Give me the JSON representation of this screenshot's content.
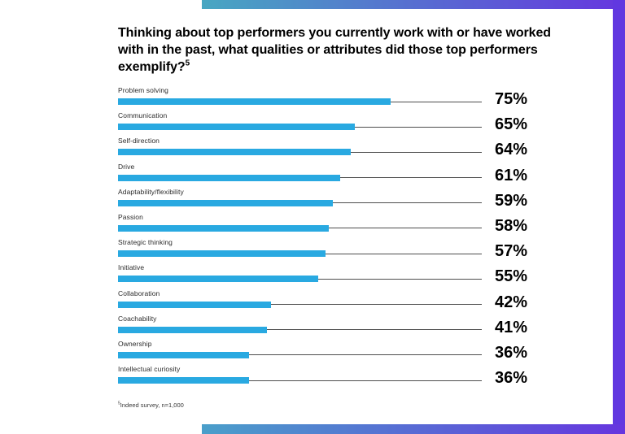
{
  "chart": {
    "title": "Thinking about top performers you currently work with or have worked with in the past, what qualities or attributes did those top performers exemplify?",
    "title_superscript": "5"
  },
  "footnote": {
    "superscript": "5",
    "text": "Indeed survey, n=1,000"
  },
  "colors": {
    "bar_color": "#29a9e1",
    "leader_line_color": "#4d4d4d",
    "gradient_teal": "#48a7c2",
    "gradient_blue": "#4a9fca",
    "gradient_purple": "#6636df",
    "right_column": "#6138e0"
  },
  "chart_data": {
    "type": "bar",
    "orientation": "horizontal",
    "title": "Thinking about top performers you currently work with or have worked with in the past, what qualities or attributes did those top performers exemplify?",
    "footnote": "Indeed survey, n=1,000",
    "categories": [
      "Problem solving",
      "Communication",
      "Self-direction",
      "Drive",
      "Adaptability/flexibility",
      "Passion",
      "Strategic thinking",
      "Initiative",
      "Collaboration",
      "Coachability",
      "Ownership",
      "Intellectual curiosity"
    ],
    "values": [
      75,
      65,
      64,
      61,
      59,
      58,
      57,
      55,
      42,
      41,
      36,
      36
    ],
    "value_suffix": "%",
    "axis_max": 100,
    "grid": false,
    "legend": false,
    "value_labels_position": "right"
  }
}
